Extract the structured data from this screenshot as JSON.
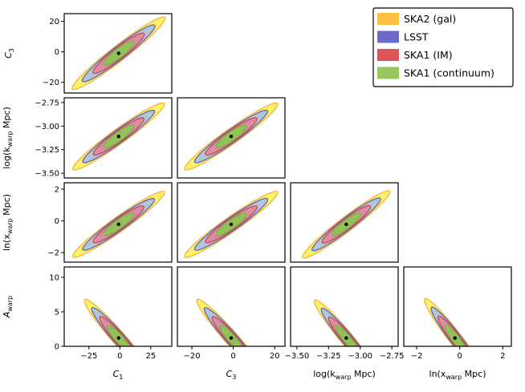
{
  "chart_data": {
    "type": "corner-contour",
    "parameters": [
      {
        "symbol": "C",
        "sub": "1",
        "fiducial": -1,
        "range": [
          -45,
          42
        ],
        "ticks": [
          -25,
          0,
          25
        ],
        "tick_labels": [
          "−25",
          "0",
          "25"
        ]
      },
      {
        "symbol": "C",
        "sub": "3",
        "fiducial": -1,
        "range": [
          -27,
          25
        ],
        "ticks": [
          -20,
          0,
          20
        ],
        "tick_labels": [
          "−20",
          "0",
          "20"
        ]
      },
      {
        "symbol": "log(k",
        "sub": "warp",
        "tail": " Mpc)",
        "fiducial": -3.11,
        "range": [
          -3.55,
          -2.7
        ],
        "ticks": [
          -3.5,
          -3.25,
          -3.0,
          -2.75
        ],
        "tick_labels": [
          "−3.50",
          "−3.25",
          "−3.00",
          "−2.75"
        ]
      },
      {
        "symbol": "ln(x",
        "sub": "warp",
        "tail": " Mpc)",
        "fiducial": -0.22,
        "range": [
          -2.6,
          2.4
        ],
        "ticks": [
          -2,
          0,
          2
        ],
        "tick_labels": [
          "−2",
          "0",
          "2"
        ]
      },
      {
        "symbol": "A",
        "sub": "warp",
        "fiducial": 1.2,
        "range": [
          0,
          11.5
        ],
        "ticks": [
          0,
          5,
          10
        ],
        "tick_labels": [
          "0",
          "5",
          "10"
        ]
      }
    ],
    "series": [
      {
        "name": "SKA2 (gal)",
        "fill": "#fdf06a",
        "edge": "#f6b33c",
        "scale": 1.0
      },
      {
        "name": "LSST",
        "fill": "#b4c6d3",
        "edge": "#5a67b8",
        "scale": 0.78
      },
      {
        "name": "SKA1 (IM)",
        "fill": "#d88fa2",
        "edge": "#dc3c4a",
        "scale": 0.55
      },
      {
        "name": "SKA1 (continuum)",
        "fill": "#92c257",
        "edge": "#7ab24a",
        "scale": 0.32
      }
    ],
    "legend": {
      "position": "top-right",
      "entries": [
        {
          "label": "SKA2 (gal)",
          "color": "#fbbf45"
        },
        {
          "label": "LSST",
          "color": "#6a6cc8"
        },
        {
          "label": "SKA1 (IM)",
          "color": "#dc5358"
        },
        {
          "label": "SKA1 (continuum)",
          "color": "#97c55e"
        }
      ]
    },
    "panels": [
      {
        "row": 0,
        "col": 0,
        "x": [
          -38,
          37
        ],
        "y": [
          -24,
          23
        ]
      },
      {
        "row": 1,
        "col": 0,
        "x": [
          -38,
          36
        ],
        "y": [
          -3.48,
          -2.78
        ]
      },
      {
        "row": 1,
        "col": 1,
        "x": [
          -25,
          20
        ],
        "y": [
          -3.48,
          -2.78
        ]
      },
      {
        "row": 2,
        "col": 0,
        "x": [
          -38,
          36
        ],
        "y": [
          -2.2,
          1.9
        ]
      },
      {
        "row": 2,
        "col": 1,
        "x": [
          -25,
          20
        ],
        "y": [
          -2.2,
          1.9
        ]
      },
      {
        "row": 2,
        "col": 2,
        "x": [
          -3.46,
          -2.77
        ],
        "y": [
          -2.2,
          2.0
        ]
      },
      {
        "row": 3,
        "col": 0,
        "x": [
          -37,
          18
        ],
        "y": [
          10.7,
          -0.5
        ]
      },
      {
        "row": 3,
        "col": 1,
        "x": [
          -24,
          9
        ],
        "y": [
          10.7,
          -0.5
        ]
      },
      {
        "row": 3,
        "col": 2,
        "x": [
          -3.46,
          -2.96
        ],
        "y": [
          10.5,
          -0.5
        ]
      },
      {
        "row": 3,
        "col": 3,
        "x": [
          -2.1,
          0.7
        ],
        "y": [
          10.9,
          -0.5
        ]
      }
    ]
  }
}
